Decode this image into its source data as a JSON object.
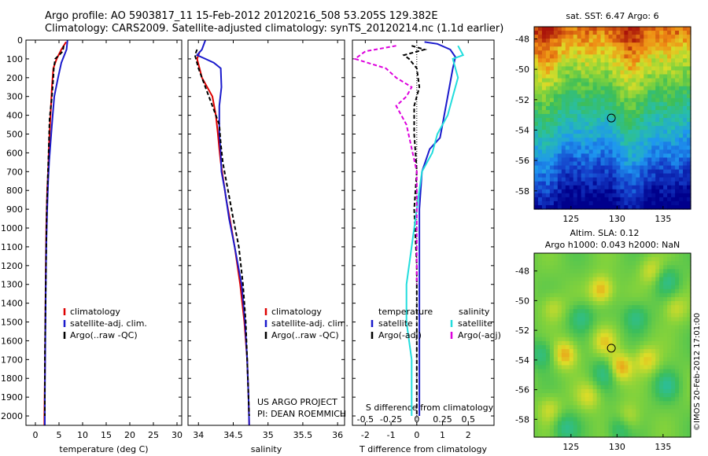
{
  "header": {
    "line1": "Argo profile: AO 5903817_11 15-Feb-2012 20120216_508 53.205S 129.382E",
    "line2": "Climatology: CARS2009. Satellite-adjusted climatology: synTS_20120214.nc (1.1d earlier)"
  },
  "stamp": "©IMOS 20-Feb-2012 17:01:00",
  "colors": {
    "climatology": "#dd0000",
    "satellite": "#1a1acc",
    "argo": "#000000",
    "argo_sal_diff": "#dd00dd",
    "satellite_sal": "#22dddd",
    "marker": "#000000"
  },
  "chart_data": [
    {
      "type": "line",
      "id": "temperature",
      "xlabel": "temperature (deg C)",
      "ylabel": "",
      "xlim": [
        -2,
        31
      ],
      "ylim": [
        2050,
        0
      ],
      "y_reversed": true,
      "xticks": [
        0,
        5,
        10,
        15,
        20,
        25,
        30
      ],
      "yticks": [
        0,
        100,
        200,
        300,
        400,
        500,
        600,
        700,
        800,
        900,
        1000,
        1100,
        1200,
        1300,
        1400,
        1500,
        1600,
        1700,
        1800,
        1900,
        2000
      ],
      "legend": [
        "climatology",
        "satellite-adj. clim.",
        "Argo(..raw -QC)"
      ],
      "legend_position": "center",
      "series": [
        {
          "name": "climatology",
          "color": "#dd0000",
          "dash": "",
          "points": [
            [
              6.5,
              10
            ],
            [
              5.5,
              50
            ],
            [
              4.5,
              100
            ],
            [
              3.8,
              150
            ],
            [
              3.5,
              250
            ],
            [
              3.2,
              400
            ],
            [
              2.9,
              550
            ],
            [
              2.7,
              700
            ],
            [
              2.5,
              800
            ],
            [
              2.3,
              1000
            ],
            [
              2.2,
              1200
            ],
            [
              2.1,
              1500
            ],
            [
              2.0,
              1800
            ],
            [
              1.9,
              2000
            ],
            [
              1.9,
              2050
            ]
          ]
        },
        {
          "name": "satellite-adj. clim.",
          "color": "#1a1acc",
          "dash": "",
          "points": [
            [
              6.8,
              0
            ],
            [
              6.6,
              50
            ],
            [
              5.5,
              120
            ],
            [
              4.8,
              200
            ],
            [
              4.0,
              300
            ],
            [
              3.6,
              420
            ],
            [
              3.2,
              550
            ],
            [
              2.9,
              650
            ],
            [
              2.7,
              750
            ],
            [
              2.5,
              900
            ],
            [
              2.3,
              1100
            ],
            [
              2.2,
              1300
            ],
            [
              2.1,
              1600
            ],
            [
              2.0,
              1900
            ],
            [
              2.0,
              2050
            ]
          ]
        },
        {
          "name": "Argo(..raw -QC)",
          "color": "#000000",
          "dash": "5,3",
          "points": [
            [
              6.0,
              30
            ],
            [
              5.8,
              60
            ],
            [
              4.2,
              100
            ],
            [
              3.9,
              150
            ],
            [
              3.8,
              200
            ],
            [
              3.5,
              300
            ],
            [
              3.0,
              420
            ],
            [
              2.8,
              600
            ],
            [
              2.6,
              750
            ],
            [
              2.4,
              900
            ],
            [
              2.3,
              1100
            ],
            [
              2.2,
              1300
            ],
            [
              2.1,
              1500
            ],
            [
              2.0,
              1700
            ],
            [
              2.0,
              2000
            ]
          ]
        }
      ]
    },
    {
      "type": "line",
      "id": "salinity",
      "xlabel": "salinity",
      "ylabel": "",
      "xlim": [
        33.85,
        36.1
      ],
      "ylim": [
        2050,
        0
      ],
      "y_reversed": true,
      "xticks": [
        34,
        34.5,
        35,
        35.5,
        36
      ],
      "legend": [
        "climatology",
        "satellite-adj. clim.",
        "Argo(..raw -QC)"
      ],
      "legend_position": "center",
      "annotation": [
        "US ARGO PROJECT",
        "PI: DEAN ROEMMICH"
      ],
      "series": [
        {
          "name": "climatology",
          "color": "#dd0000",
          "dash": "",
          "points": [
            [
              34.02,
              60
            ],
            [
              33.98,
              100
            ],
            [
              34.05,
              200
            ],
            [
              34.2,
              300
            ],
            [
              34.25,
              400
            ],
            [
              34.28,
              500
            ],
            [
              34.3,
              580
            ],
            [
              34.32,
              650
            ],
            [
              34.36,
              750
            ],
            [
              34.4,
              850
            ],
            [
              34.45,
              950
            ],
            [
              34.52,
              1100
            ],
            [
              34.6,
              1300
            ],
            [
              34.66,
              1500
            ],
            [
              34.7,
              1700
            ],
            [
              34.72,
              1900
            ],
            [
              34.73,
              2050
            ]
          ]
        },
        {
          "name": "satellite-adj. clim.",
          "color": "#1a1acc",
          "dash": "",
          "points": [
            [
              34.1,
              0
            ],
            [
              34.05,
              50
            ],
            [
              33.98,
              80
            ],
            [
              34.1,
              100
            ],
            [
              34.22,
              120
            ],
            [
              34.32,
              150
            ],
            [
              34.33,
              250
            ],
            [
              34.3,
              350
            ],
            [
              34.3,
              500
            ],
            [
              34.32,
              600
            ],
            [
              34.33,
              700
            ],
            [
              34.38,
              800
            ],
            [
              34.44,
              950
            ],
            [
              34.52,
              1100
            ],
            [
              34.62,
              1300
            ],
            [
              34.67,
              1500
            ],
            [
              34.7,
              1700
            ],
            [
              34.72,
              1900
            ],
            [
              34.73,
              2050
            ]
          ]
        },
        {
          "name": "Argo(..raw -QC)",
          "color": "#000000",
          "dash": "5,3",
          "points": [
            [
              33.98,
              50
            ],
            [
              33.95,
              80
            ],
            [
              34.0,
              150
            ],
            [
              34.1,
              250
            ],
            [
              34.2,
              350
            ],
            [
              34.3,
              450
            ],
            [
              34.32,
              550
            ],
            [
              34.35,
              650
            ],
            [
              34.4,
              750
            ],
            [
              34.45,
              850
            ],
            [
              34.5,
              950
            ],
            [
              34.58,
              1100
            ],
            [
              34.64,
              1300
            ],
            [
              34.68,
              1500
            ],
            [
              34.7,
              1700
            ],
            [
              34.72,
              1900
            ],
            [
              34.73,
              2000
            ]
          ]
        }
      ]
    },
    {
      "type": "line",
      "id": "difference",
      "xlabel": "T difference from climatology",
      "x2label": "S difference from climatology",
      "xlim": [
        -2.5,
        3.0
      ],
      "ylim": [
        2050,
        0
      ],
      "y_reversed": true,
      "xticks": [
        -2,
        -1,
        0,
        1,
        2
      ],
      "x2lim": [
        -0.625,
        0.75
      ],
      "x2ticks": [
        -0.5,
        -0.25,
        0,
        0.25,
        0.5
      ],
      "x2ticklabels": [
        "-0.5",
        "-0.25",
        "0",
        "0.25",
        "0.5"
      ],
      "legend_groups": [
        {
          "heading": "temperature",
          "items": [
            "satellite",
            "Argo(-adj)"
          ]
        },
        {
          "heading": "salinity",
          "items": [
            "satellite",
            "Argo(-adj)"
          ]
        }
      ],
      "series": [
        {
          "name": "satellite",
          "group": "temperature",
          "color": "#1a1acc",
          "dash": "",
          "points": [
            [
              0.3,
              10
            ],
            [
              0.8,
              20
            ],
            [
              1.3,
              50
            ],
            [
              1.5,
              90
            ],
            [
              1.4,
              150
            ],
            [
              1.2,
              300
            ],
            [
              1.0,
              450
            ],
            [
              0.9,
              520
            ],
            [
              0.5,
              580
            ],
            [
              0.2,
              700
            ],
            [
              0.1,
              900
            ],
            [
              0.1,
              1200
            ],
            [
              0.1,
              1600
            ],
            [
              0.1,
              2000
            ]
          ]
        },
        {
          "name": "Argo(-adj)",
          "group": "temperature",
          "color": "#000000",
          "dash": "5,3",
          "points": [
            [
              -0.2,
              30
            ],
            [
              0.3,
              50
            ],
            [
              -0.5,
              80
            ],
            [
              -0.3,
              100
            ],
            [
              0.0,
              150
            ],
            [
              0.1,
              250
            ],
            [
              -0.1,
              350
            ],
            [
              -0.1,
              500
            ],
            [
              0.0,
              700
            ],
            [
              -0.1,
              900
            ],
            [
              0.0,
              1200
            ],
            [
              0.0,
              1600
            ],
            [
              0.0,
              2000
            ]
          ]
        },
        {
          "name": "satellite",
          "group": "salinity",
          "color": "#22dddd",
          "dash": "",
          "points": [
            [
              0.4,
              30
            ],
            [
              0.45,
              80
            ],
            [
              0.35,
              100
            ],
            [
              0.4,
              200
            ],
            [
              0.35,
              300
            ],
            [
              0.3,
              400
            ],
            [
              0.2,
              500
            ],
            [
              0.15,
              600
            ],
            [
              0.05,
              700
            ],
            [
              0.0,
              900
            ],
            [
              -0.05,
              1100
            ],
            [
              -0.1,
              1300
            ],
            [
              -0.1,
              1500
            ],
            [
              -0.05,
              1700
            ],
            [
              -0.05,
              2000
            ]
          ]
        },
        {
          "name": "Argo(-adj)",
          "group": "salinity",
          "color": "#dd00dd",
          "dash": "5,3",
          "points": [
            [
              -0.2,
              30
            ],
            [
              -0.5,
              60
            ],
            [
              -0.6,
              100
            ],
            [
              -0.3,
              150
            ],
            [
              -0.2,
              200
            ],
            [
              -0.05,
              250
            ],
            [
              -0.1,
              300
            ],
            [
              -0.2,
              350
            ],
            [
              -0.1,
              450
            ],
            [
              0.0,
              700
            ],
            [
              0.0,
              1000
            ],
            [
              0.0,
              1300
            ]
          ]
        }
      ]
    },
    {
      "type": "heatmap",
      "id": "sst_map",
      "title": "sat. SST: 6.47 Argo: 6",
      "xlim": [
        121,
        138
      ],
      "ylim": [
        -59.2,
        -47.2
      ],
      "xticks": [
        125,
        130,
        135
      ],
      "yticks": [
        -48,
        -50,
        -52,
        -54,
        -56,
        -58
      ],
      "marker": [
        129.382,
        -53.205
      ]
    },
    {
      "type": "heatmap",
      "id": "sla_map",
      "title": [
        "Altim. SLA: 0.12",
        "Argo h1000: 0.043 h2000: NaN"
      ],
      "xlim": [
        121,
        138
      ],
      "ylim": [
        -59.2,
        -46.8
      ],
      "xticks": [
        125,
        130,
        135
      ],
      "yticks": [
        -48,
        -50,
        -52,
        -54,
        -56,
        -58
      ],
      "marker": [
        129.382,
        -53.205
      ]
    }
  ]
}
